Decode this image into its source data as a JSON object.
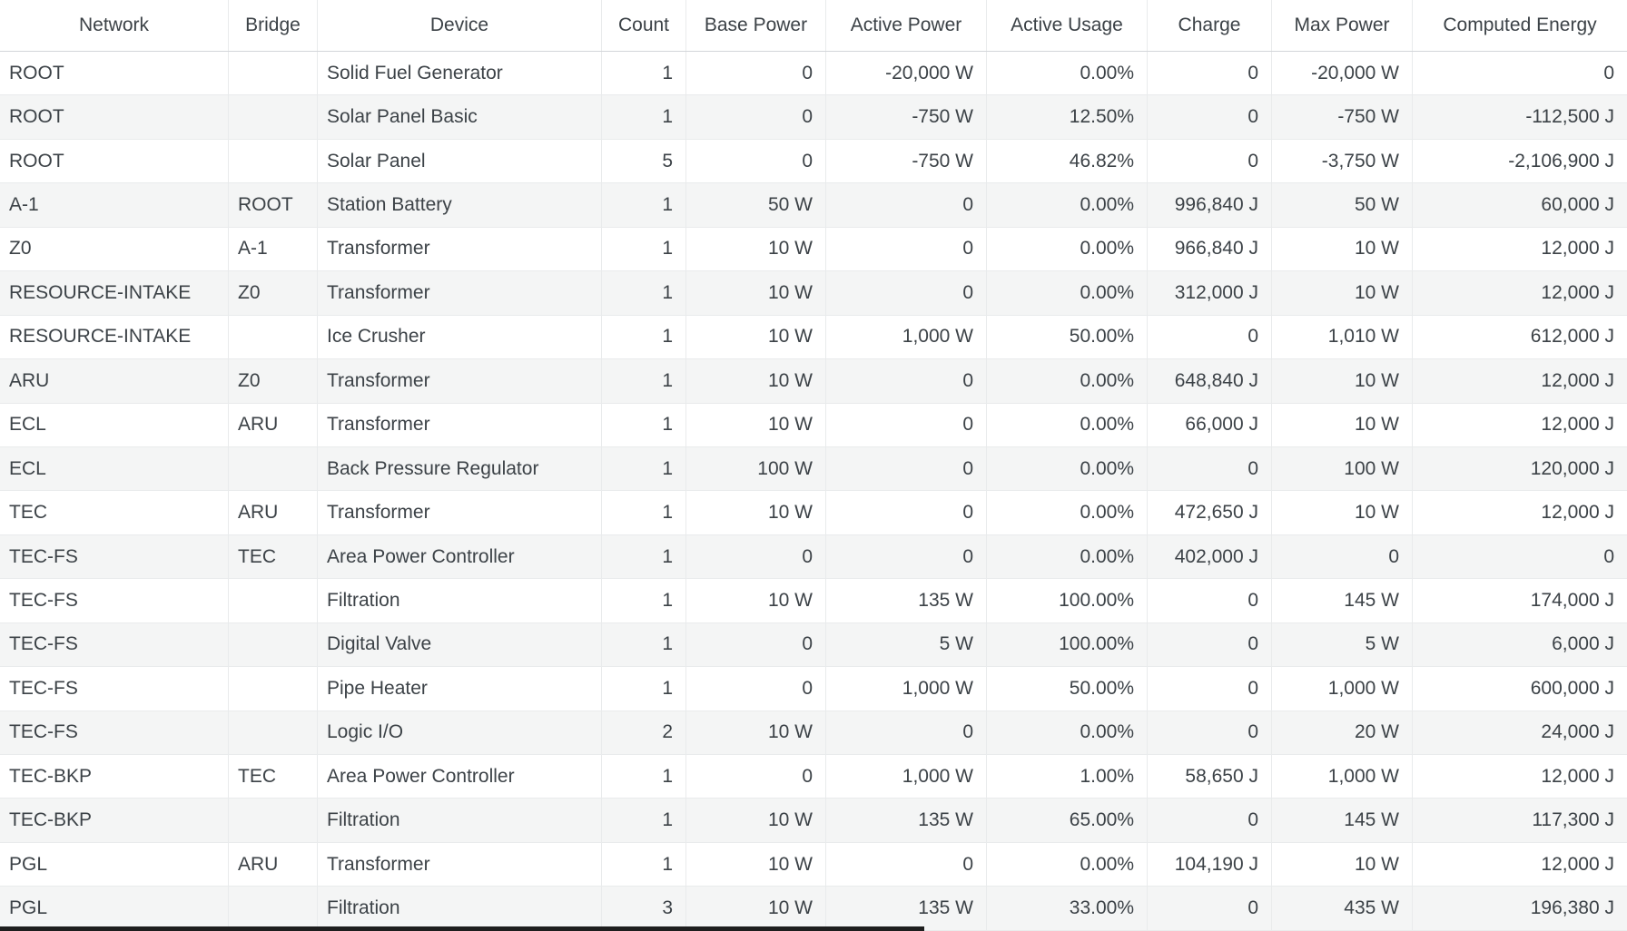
{
  "table": {
    "columns": [
      {
        "key": "network",
        "label": "Network"
      },
      {
        "key": "bridge",
        "label": "Bridge"
      },
      {
        "key": "device",
        "label": "Device"
      },
      {
        "key": "count",
        "label": "Count"
      },
      {
        "key": "base_power",
        "label": "Base Power"
      },
      {
        "key": "active_power",
        "label": "Active Power"
      },
      {
        "key": "active_usage",
        "label": "Active Usage"
      },
      {
        "key": "charge",
        "label": "Charge"
      },
      {
        "key": "max_power",
        "label": "Max Power"
      },
      {
        "key": "computed_energy",
        "label": "Computed Energy"
      }
    ],
    "rows": [
      {
        "network": "ROOT",
        "bridge": "",
        "device": "Solid Fuel Generator",
        "count": "1",
        "base_power": "0",
        "active_power": "-20,000 W",
        "active_usage": "0.00%",
        "charge": "0",
        "max_power": "-20,000 W",
        "computed_energy": "0"
      },
      {
        "network": "ROOT",
        "bridge": "",
        "device": "Solar Panel Basic",
        "count": "1",
        "base_power": "0",
        "active_power": "-750 W",
        "active_usage": "12.50%",
        "charge": "0",
        "max_power": "-750 W",
        "computed_energy": "-112,500 J"
      },
      {
        "network": "ROOT",
        "bridge": "",
        "device": "Solar Panel",
        "count": "5",
        "base_power": "0",
        "active_power": "-750 W",
        "active_usage": "46.82%",
        "charge": "0",
        "max_power": "-3,750 W",
        "computed_energy": "-2,106,900 J"
      },
      {
        "network": "A-1",
        "bridge": "ROOT",
        "device": "Station Battery",
        "count": "1",
        "base_power": "50 W",
        "active_power": "0",
        "active_usage": "0.00%",
        "charge": "996,840 J",
        "max_power": "50 W",
        "computed_energy": "60,000 J"
      },
      {
        "network": "Z0",
        "bridge": "A-1",
        "device": "Transformer",
        "count": "1",
        "base_power": "10 W",
        "active_power": "0",
        "active_usage": "0.00%",
        "charge": "966,840 J",
        "max_power": "10 W",
        "computed_energy": "12,000 J"
      },
      {
        "network": "RESOURCE-INTAKE",
        "bridge": "Z0",
        "device": "Transformer",
        "count": "1",
        "base_power": "10 W",
        "active_power": "0",
        "active_usage": "0.00%",
        "charge": "312,000 J",
        "max_power": "10 W",
        "computed_energy": "12,000 J"
      },
      {
        "network": "RESOURCE-INTAKE",
        "bridge": "",
        "device": "Ice Crusher",
        "count": "1",
        "base_power": "10 W",
        "active_power": "1,000 W",
        "active_usage": "50.00%",
        "charge": "0",
        "max_power": "1,010 W",
        "computed_energy": "612,000 J"
      },
      {
        "network": "ARU",
        "bridge": "Z0",
        "device": "Transformer",
        "count": "1",
        "base_power": "10 W",
        "active_power": "0",
        "active_usage": "0.00%",
        "charge": "648,840 J",
        "max_power": "10 W",
        "computed_energy": "12,000 J"
      },
      {
        "network": "ECL",
        "bridge": "ARU",
        "device": "Transformer",
        "count": "1",
        "base_power": "10 W",
        "active_power": "0",
        "active_usage": "0.00%",
        "charge": "66,000 J",
        "max_power": "10 W",
        "computed_energy": "12,000 J"
      },
      {
        "network": "ECL",
        "bridge": "",
        "device": "Back Pressure Regulator",
        "count": "1",
        "base_power": "100 W",
        "active_power": "0",
        "active_usage": "0.00%",
        "charge": "0",
        "max_power": "100 W",
        "computed_energy": "120,000 J"
      },
      {
        "network": "TEC",
        "bridge": "ARU",
        "device": "Transformer",
        "count": "1",
        "base_power": "10 W",
        "active_power": "0",
        "active_usage": "0.00%",
        "charge": "472,650 J",
        "max_power": "10 W",
        "computed_energy": "12,000 J"
      },
      {
        "network": "TEC-FS",
        "bridge": "TEC",
        "device": "Area Power Controller",
        "count": "1",
        "base_power": "0",
        "active_power": "0",
        "active_usage": "0.00%",
        "charge": "402,000 J",
        "max_power": "0",
        "computed_energy": "0"
      },
      {
        "network": "TEC-FS",
        "bridge": "",
        "device": "Filtration",
        "count": "1",
        "base_power": "10 W",
        "active_power": "135 W",
        "active_usage": "100.00%",
        "charge": "0",
        "max_power": "145 W",
        "computed_energy": "174,000 J"
      },
      {
        "network": "TEC-FS",
        "bridge": "",
        "device": "Digital Valve",
        "count": "1",
        "base_power": "0",
        "active_power": "5 W",
        "active_usage": "100.00%",
        "charge": "0",
        "max_power": "5 W",
        "computed_energy": "6,000 J"
      },
      {
        "network": "TEC-FS",
        "bridge": "",
        "device": "Pipe Heater",
        "count": "1",
        "base_power": "0",
        "active_power": "1,000 W",
        "active_usage": "50.00%",
        "charge": "0",
        "max_power": "1,000 W",
        "computed_energy": "600,000 J"
      },
      {
        "network": "TEC-FS",
        "bridge": "",
        "device": "Logic I/O",
        "count": "2",
        "base_power": "10 W",
        "active_power": "0",
        "active_usage": "0.00%",
        "charge": "0",
        "max_power": "20 W",
        "computed_energy": "24,000 J"
      },
      {
        "network": "TEC-BKP",
        "bridge": "TEC",
        "device": "Area Power Controller",
        "count": "1",
        "base_power": "0",
        "active_power": "1,000 W",
        "active_usage": "1.00%",
        "charge": "58,650 J",
        "max_power": "1,000 W",
        "computed_energy": "12,000 J"
      },
      {
        "network": "TEC-BKP",
        "bridge": "",
        "device": "Filtration",
        "count": "1",
        "base_power": "10 W",
        "active_power": "135 W",
        "active_usage": "65.00%",
        "charge": "0",
        "max_power": "145 W",
        "computed_energy": "117,300 J"
      },
      {
        "network": "PGL",
        "bridge": "ARU",
        "device": "Transformer",
        "count": "1",
        "base_power": "10 W",
        "active_power": "0",
        "active_usage": "0.00%",
        "charge": "104,190 J",
        "max_power": "10 W",
        "computed_energy": "12,000 J"
      },
      {
        "network": "PGL",
        "bridge": "",
        "device": "Filtration",
        "count": "3",
        "base_power": "10 W",
        "active_power": "135 W",
        "active_usage": "33.00%",
        "charge": "0",
        "max_power": "435 W",
        "computed_energy": "196,380 J"
      }
    ]
  },
  "colors": {
    "stripe": "#f4f5f5",
    "grid": "#e9ebec",
    "header_text": "#7b838a",
    "body_text": "#3c4247",
    "header_border": "#d3d6d9",
    "scrollbar": "#1e1e1e"
  }
}
